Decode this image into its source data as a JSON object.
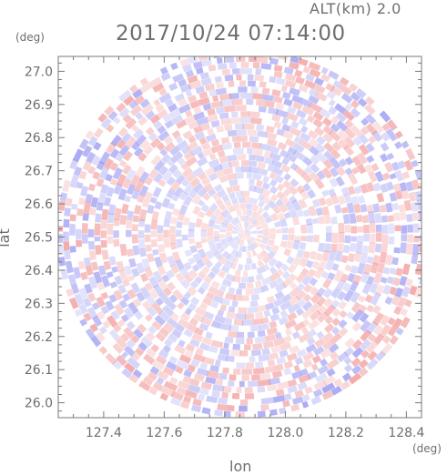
{
  "header": {
    "altitude_label": "ALT(km) 2.0",
    "timestamp": "2017/10/24 07:14:00"
  },
  "chart_data": {
    "type": "heatmap",
    "title": "2017/10/24 07:14:00",
    "subtitle": "ALT(km) 2.0",
    "xlabel": "lon",
    "ylabel": "lat",
    "x_unit": "(deg)",
    "y_unit": "(deg)",
    "xlim": [
      127.25,
      128.45
    ],
    "ylim": [
      25.955,
      27.045
    ],
    "x_ticks": [
      127.4,
      127.6,
      127.8,
      128.0,
      128.2,
      128.4
    ],
    "x_tick_labels": [
      "127.4",
      "127.6",
      "127.8",
      "128.0",
      "128.2",
      "128.4"
    ],
    "y_ticks": [
      26.0,
      26.1,
      26.2,
      26.3,
      26.4,
      26.5,
      26.6,
      26.7,
      26.8,
      26.9,
      27.0
    ],
    "y_tick_labels": [
      "26.0",
      "26.1",
      "26.2",
      "26.3",
      "26.4",
      "26.5",
      "26.6",
      "26.7",
      "26.8",
      "26.9",
      "27.0"
    ],
    "radar_center": {
      "lon": 127.865,
      "lat": 26.51
    },
    "radar_range_deg": {
      "lon": 0.62,
      "lat": 0.555
    },
    "colors": {
      "positive": "#f08a8a",
      "negative": "#8a8af0",
      "frame": "#7a7a7a",
      "text": "#6e6e6e"
    },
    "grid": false,
    "legend": "none"
  }
}
